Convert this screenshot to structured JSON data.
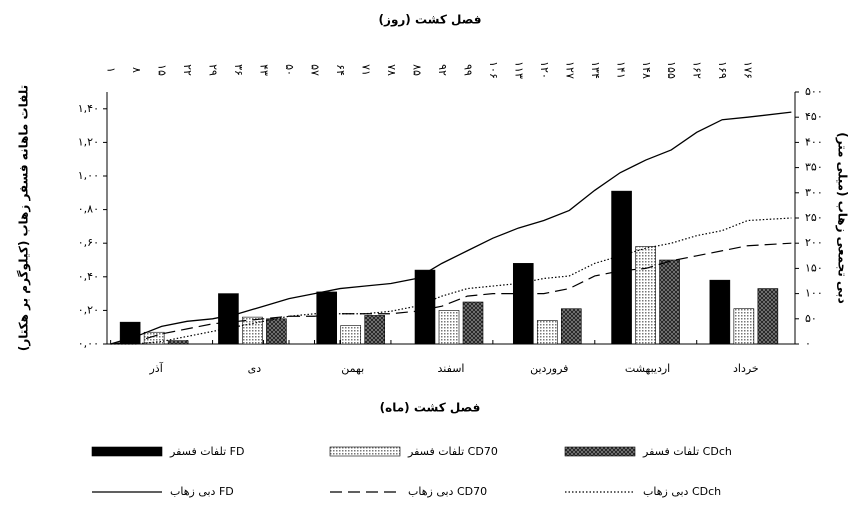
{
  "chart_data": {
    "type": "bar",
    "title": "فصل کشت (روز)",
    "x_label": "فصل کشت (ماه)",
    "y_label": "تلفات ماهانه فسفر زهاب (کیلوگرم بر هکتار)",
    "y2_label": "دبی تجمعی زهاب (میلی متر)",
    "categories": [
      "آذر",
      "دی",
      "بهمن",
      "اسفند",
      "فروردین",
      "اردیبهشت",
      "خرداد"
    ],
    "series": [
      {
        "name": "تلفات فسفر FD",
        "color": "#000000",
        "pattern": "solid",
        "values": [
          0.13,
          0.3,
          0.31,
          0.44,
          0.48,
          0.91,
          0.38
        ]
      },
      {
        "name": "تلفات فسفر CD70",
        "color": "#bdbdbd",
        "pattern": "dots",
        "values": [
          0.07,
          0.16,
          0.11,
          0.2,
          0.14,
          0.58,
          0.21
        ]
      },
      {
        "name": "تلفات فسفر CDch",
        "color": "#555555",
        "pattern": "crosshatch",
        "values": [
          0.02,
          0.15,
          0.17,
          0.25,
          0.21,
          0.5,
          0.33
        ]
      }
    ],
    "x": [
      1,
      8,
      15,
      22,
      29,
      36,
      43,
      50,
      57,
      64,
      71,
      78,
      85,
      92,
      99,
      106,
      113,
      120,
      127,
      134,
      141,
      148,
      155,
      162,
      169,
      176,
      188
    ],
    "line_series": [
      {
        "name": "دبی زهاب FD",
        "color": "#000000",
        "dash": "solid",
        "axis": "y2",
        "values": [
          0,
          15,
          35,
          45,
          50,
          60,
          75,
          90,
          100,
          110,
          115,
          120,
          130,
          160,
          185,
          210,
          230,
          245,
          265,
          305,
          340,
          365,
          385,
          420,
          445,
          450,
          460
        ]
      },
      {
        "name": "دبی زهاب CD70",
        "color": "#000000",
        "dash": "dashed",
        "axis": "y2",
        "values": [
          0,
          5,
          20,
          30,
          40,
          45,
          50,
          55,
          55,
          60,
          60,
          60,
          65,
          75,
          95,
          100,
          100,
          100,
          110,
          135,
          145,
          150,
          165,
          175,
          185,
          195,
          200
        ]
      },
      {
        "name": "دبی زهاب CDch",
        "color": "#000000",
        "dash": "dotted",
        "axis": "y2",
        "values": [
          0,
          0,
          5,
          15,
          25,
          35,
          45,
          55,
          60,
          60,
          60,
          65,
          75,
          95,
          110,
          115,
          120,
          130,
          135,
          160,
          175,
          190,
          200,
          215,
          225,
          245,
          250
        ]
      }
    ],
    "xlim": [
      0,
      189
    ],
    "xticks": [
      {
        "value": 1,
        "label": "۱"
      },
      {
        "value": 8,
        "label": "۸"
      },
      {
        "value": 15,
        "label": "۱۵"
      },
      {
        "value": 22,
        "label": "۲۲"
      },
      {
        "value": 29,
        "label": "۲۹"
      },
      {
        "value": 36,
        "label": "۳۶"
      },
      {
        "value": 43,
        "label": "۴۳"
      },
      {
        "value": 50,
        "label": "۵۰"
      },
      {
        "value": 57,
        "label": "۵۷"
      },
      {
        "value": 64,
        "label": "۶۴"
      },
      {
        "value": 71,
        "label": "۷۱"
      },
      {
        "value": 78,
        "label": "۷۸"
      },
      {
        "value": 85,
        "label": "۸۵"
      },
      {
        "value": 92,
        "label": "۹۲"
      },
      {
        "value": 99,
        "label": "۹۹"
      },
      {
        "value": 106,
        "label": "۱۰۶"
      },
      {
        "value": 113,
        "label": "۱۱۳"
      },
      {
        "value": 120,
        "label": "۱۲۰"
      },
      {
        "value": 127,
        "label": "۱۲۷"
      },
      {
        "value": 134,
        "label": "۱۳۴"
      },
      {
        "value": 141,
        "label": "۱۴۱"
      },
      {
        "value": 148,
        "label": "۱۴۸"
      },
      {
        "value": 155,
        "label": "۱۵۵"
      },
      {
        "value": 162,
        "label": "۱۶۲"
      },
      {
        "value": 169,
        "label": "۱۶۹"
      },
      {
        "value": 176,
        "label": "۱۷۶"
      }
    ],
    "ylim": [
      0,
      1.5
    ],
    "yticks": [
      {
        "value": 0,
        "label": "۰,۰۰"
      },
      {
        "value": 0.2,
        "label": "۰,۲۰"
      },
      {
        "value": 0.4,
        "label": "۰,۴۰"
      },
      {
        "value": 0.6,
        "label": "۰,۶۰"
      },
      {
        "value": 0.8,
        "label": "۰,۸۰"
      },
      {
        "value": 1.0,
        "label": "۱,۰۰"
      },
      {
        "value": 1.2,
        "label": "۱,۲۰"
      },
      {
        "value": 1.4,
        "label": "۱,۴۰"
      }
    ],
    "y2lim": [
      0,
      500
    ],
    "y2ticks": [
      {
        "value": 0,
        "label": "۰"
      },
      {
        "value": 50,
        "label": "۵۰"
      },
      {
        "value": 100,
        "label": "۱۰۰"
      },
      {
        "value": 150,
        "label": "۱۵۰"
      },
      {
        "value": 200,
        "label": "۲۰۰"
      },
      {
        "value": 250,
        "label": "۲۵۰"
      },
      {
        "value": 300,
        "label": "۳۰۰"
      },
      {
        "value": 350,
        "label": "۳۵۰"
      },
      {
        "value": 400,
        "label": "۴۰۰"
      },
      {
        "value": 450,
        "label": "۴۵۰"
      },
      {
        "value": 500,
        "label": "۵۰۰"
      }
    ],
    "legend": "bottom"
  }
}
